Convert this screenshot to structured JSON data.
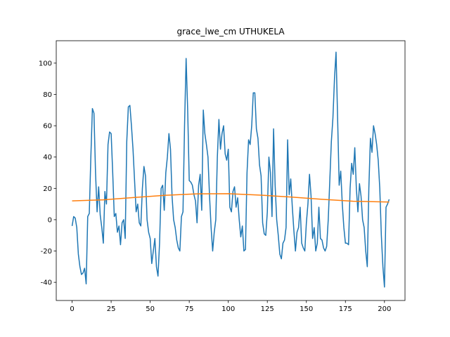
{
  "chart_data": {
    "type": "line",
    "title": "grace_lwe_cm UTHUKELA",
    "x": [
      0,
      1,
      2,
      3,
      4,
      5,
      6,
      7,
      8,
      9,
      10,
      11,
      12,
      13,
      14,
      15,
      16,
      17,
      18,
      19,
      20,
      21,
      22,
      23,
      24,
      25,
      26,
      27,
      28,
      29,
      30,
      31,
      32,
      33,
      34,
      35,
      36,
      37,
      38,
      39,
      40,
      41,
      42,
      43,
      44,
      45,
      46,
      47,
      48,
      49,
      50,
      51,
      52,
      53,
      54,
      55,
      56,
      57,
      58,
      59,
      60,
      61,
      62,
      63,
      64,
      65,
      66,
      67,
      68,
      69,
      70,
      71,
      72,
      73,
      74,
      75,
      76,
      77,
      78,
      79,
      80,
      81,
      82,
      83,
      84,
      85,
      86,
      87,
      88,
      89,
      90,
      91,
      92,
      93,
      94,
      95,
      96,
      97,
      98,
      99,
      100,
      101,
      102,
      103,
      104,
      105,
      106,
      107,
      108,
      109,
      110,
      111,
      112,
      113,
      114,
      115,
      116,
      117,
      118,
      119,
      120,
      121,
      122,
      123,
      124,
      125,
      126,
      127,
      128,
      129,
      130,
      131,
      132,
      133,
      134,
      135,
      136,
      137,
      138,
      139,
      140,
      141,
      142,
      143,
      144,
      145,
      146,
      147,
      148,
      149,
      150,
      151,
      152,
      153,
      154,
      155,
      156,
      157,
      158,
      159,
      160,
      161,
      162,
      163,
      164,
      165,
      166,
      167,
      168,
      169,
      170,
      171,
      172,
      173,
      174,
      175,
      176,
      177,
      178,
      179,
      180,
      181,
      182,
      183,
      184,
      185,
      186,
      187,
      188,
      189,
      190,
      191,
      192,
      193,
      194,
      195,
      196,
      197,
      198,
      199,
      200,
      201,
      202,
      203
    ],
    "series": [
      {
        "color": "#1f77b4",
        "values": [
          -4,
          2,
          1,
          -5,
          -22,
          -30,
          -35,
          -34,
          -31,
          -41,
          2,
          4,
          40,
          71,
          68,
          30,
          5,
          21,
          3,
          -5,
          -15,
          18,
          10,
          48,
          56,
          55,
          30,
          2,
          4,
          -8,
          -4,
          -16,
          -2,
          0,
          -12,
          50,
          72,
          73,
          60,
          45,
          25,
          5,
          10,
          -2,
          -4,
          20,
          34,
          28,
          0,
          -8,
          -12,
          -28,
          -20,
          -12,
          -30,
          -36,
          -15,
          20,
          22,
          6,
          30,
          40,
          55,
          45,
          15,
          0,
          -5,
          -13,
          -18,
          -20,
          2,
          5,
          60,
          103,
          70,
          25,
          24,
          22,
          16,
          12,
          -2,
          22,
          29,
          6,
          70,
          55,
          48,
          40,
          15,
          -5,
          -20,
          -8,
          0,
          40,
          64,
          45,
          55,
          60,
          42,
          38,
          45,
          8,
          5,
          18,
          21,
          8,
          14,
          0,
          -11,
          -4,
          -20,
          -19,
          30,
          51,
          48,
          60,
          81,
          81,
          58,
          52,
          35,
          28,
          -2,
          -9,
          -10,
          5,
          40,
          30,
          2,
          58,
          22,
          0,
          -10,
          -22,
          -25,
          -15,
          -13,
          -5,
          51,
          16,
          26,
          8,
          -7,
          -20,
          -8,
          -5,
          8,
          -15,
          -18,
          -20,
          -2,
          10,
          29,
          15,
          -12,
          -5,
          -20,
          -15,
          8,
          -12,
          -13,
          -18,
          -20,
          -17,
          0,
          25,
          50,
          65,
          90,
          107,
          65,
          22,
          31,
          10,
          -5,
          -15,
          -15,
          -16,
          20,
          36,
          29,
          46,
          20,
          5,
          23,
          15,
          0,
          -5,
          -20,
          -30,
          20,
          52,
          43,
          60,
          55,
          48,
          38,
          20,
          -10,
          -30,
          -43,
          8,
          10,
          13
        ]
      },
      {
        "color": "#ff7f0e",
        "x": [
          0,
          20,
          40,
          60,
          80,
          100,
          120,
          140,
          160,
          180,
          203
        ],
        "values": [
          12,
          12.7,
          14.2,
          15.6,
          16.5,
          16.6,
          15.7,
          14.5,
          13,
          11.8,
          11.3
        ]
      }
    ],
    "xlim": [
      -10.15,
      213.15
    ],
    "ylim": [
      -51.6,
      114.3
    ],
    "xticks": [
      0,
      25,
      50,
      75,
      100,
      125,
      150,
      175,
      200
    ],
    "yticks": [
      -40,
      -20,
      0,
      20,
      40,
      60,
      80,
      100
    ]
  }
}
